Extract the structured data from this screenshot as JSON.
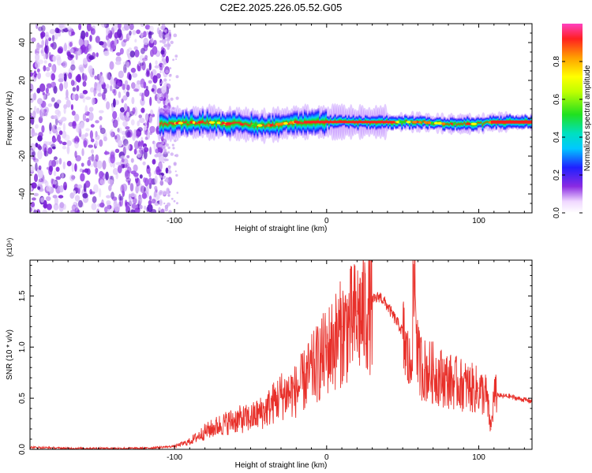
{
  "page_title": "C2E2.2025.226.05.52.G05",
  "chart_data": [
    {
      "type": "heatmap",
      "xlabel": "Height of straight line (km)",
      "ylabel": "Frequency (Hz)",
      "xlim": [
        -195,
        135
      ],
      "ylim": [
        -50,
        50
      ],
      "xticks": [
        -100,
        0,
        100
      ],
      "yticks": [
        -40,
        -20,
        0,
        20,
        40
      ],
      "colorbar": {
        "label": "Normalized spectral amplitude",
        "range": [
          0.0,
          1.0
        ],
        "ticks": [
          0.0,
          0.2,
          0.4,
          0.6,
          0.8
        ],
        "tick_labels": [
          "0.0",
          "0.2",
          "0.4",
          "0.6",
          "0.8"
        ],
        "colormap": "rainbow"
      },
      "regions": [
        {
          "description": "noise",
          "x_range": [
            -195,
            -103
          ],
          "y_range": [
            -50,
            50
          ],
          "amplitude": 0.15
        },
        {
          "description": "signal band",
          "x_range": [
            -110,
            135
          ],
          "center_freq_hz": -2,
          "bandwidth_hz": 6,
          "peak_amplitude": 1.0
        }
      ],
      "band_center": {
        "x": [
          -110,
          -80,
          -60,
          -40,
          -20,
          0,
          20,
          40,
          60,
          80,
          100,
          110,
          135
        ],
        "y": [
          -3,
          -2,
          -3,
          -4,
          -2,
          -2,
          -2,
          -2,
          -2,
          -3,
          -3,
          -2,
          -2
        ]
      },
      "colors": {
        "noise": "#7a1fd6",
        "band_edge": "#1a1aff",
        "band_core": "#ff2020"
      }
    },
    {
      "type": "line",
      "xlabel": "Height of straight line (km)",
      "ylabel": "SNR (10 * v/v)",
      "y_multiplier": "(x10⁴)",
      "xlim": [
        -195,
        135
      ],
      "ylim": [
        0,
        1.85
      ],
      "xticks": [
        -100,
        0,
        100
      ],
      "yticks": [
        0.0,
        0.5,
        1.0,
        1.5
      ],
      "ytick_labels": [
        "0.0",
        "0.5",
        "1.0",
        "1.5"
      ],
      "series": [
        {
          "color": "#e8302a",
          "x": [
            -195,
            -170,
            -150,
            -120,
            -100,
            -90,
            -80,
            -70,
            -60,
            -50,
            -40,
            -30,
            -20,
            -10,
            0,
            10,
            20,
            30,
            35,
            40,
            50,
            55,
            58,
            60,
            65,
            70,
            80,
            90,
            100,
            105,
            108,
            110,
            115,
            120,
            125,
            135
          ],
          "y": [
            0.02,
            0.01,
            0.01,
            0.01,
            0.03,
            0.08,
            0.18,
            0.25,
            0.3,
            0.32,
            0.4,
            0.55,
            0.6,
            0.8,
            1.0,
            1.2,
            1.35,
            1.45,
            1.5,
            1.4,
            1.15,
            0.8,
            1.8,
            0.9,
            0.8,
            0.78,
            0.7,
            0.65,
            0.6,
            0.55,
            0.2,
            0.55,
            0.52,
            0.52,
            0.5,
            0.47
          ]
        }
      ]
    }
  ]
}
